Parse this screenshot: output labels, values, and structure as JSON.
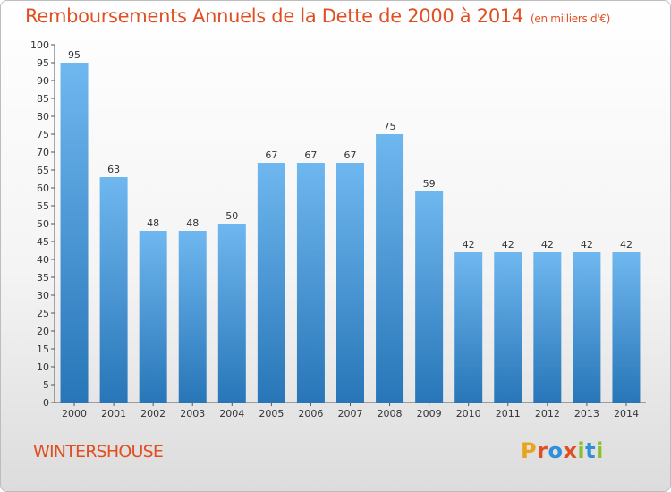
{
  "header": {
    "title": "Remboursements Annuels de la Dette de 2000 à 2014",
    "subtitle": "(en milliers d'€)"
  },
  "commune": "WINTERSHOUSE",
  "logo": {
    "text": "Proxiti",
    "letters": [
      "P",
      "r",
      "o",
      "x",
      "i",
      "t",
      "i"
    ],
    "colors": [
      "#e8a41c",
      "#e04f22",
      "#2f8fd8",
      "#e04f22",
      "#8bbf2f",
      "#2f8fd8",
      "#8bbf2f"
    ]
  },
  "colors": {
    "bar_top": "#6fb7ef",
    "bar_bottom": "#2876b8",
    "title": "#e04f22"
  },
  "chart_data": {
    "type": "bar",
    "categories": [
      "2000",
      "2001",
      "2002",
      "2003",
      "2004",
      "2005",
      "2006",
      "2007",
      "2008",
      "2009",
      "2010",
      "2011",
      "2012",
      "2013",
      "2014"
    ],
    "values": [
      95,
      63,
      48,
      48,
      50,
      67,
      67,
      67,
      75,
      59,
      42,
      42,
      42,
      42,
      42
    ],
    "title": "Remboursements Annuels de la Dette de 2000 à 2014",
    "xlabel": "",
    "ylabel": "",
    "ylim": [
      0,
      100
    ],
    "yticks": [
      0,
      5,
      10,
      15,
      20,
      25,
      30,
      35,
      40,
      45,
      50,
      55,
      60,
      65,
      70,
      75,
      80,
      85,
      90,
      95,
      100
    ],
    "grid": false,
    "data_labels": true
  }
}
